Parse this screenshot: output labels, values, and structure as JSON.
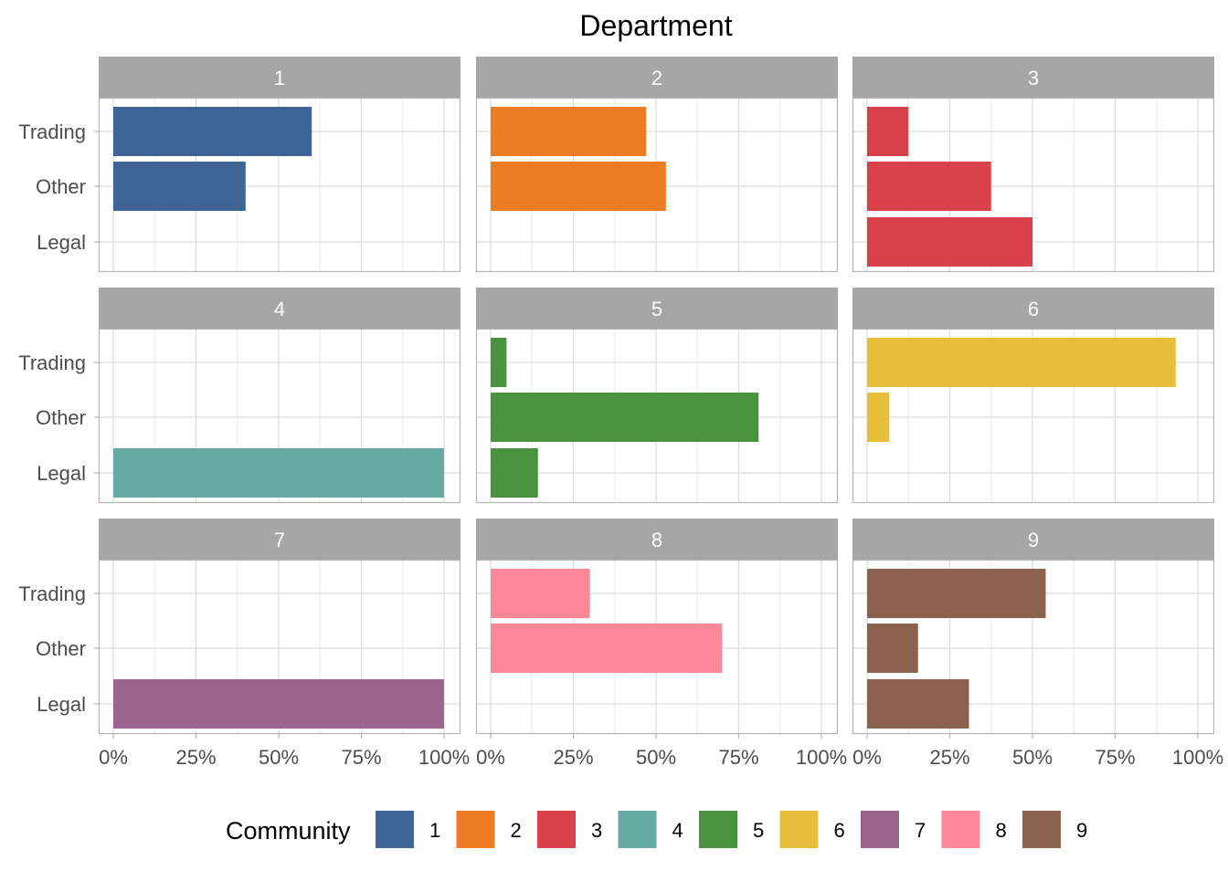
{
  "chart_data": {
    "type": "bar",
    "orientation": "horizontal",
    "title": "Department",
    "categories": [
      "Trading",
      "Other",
      "Legal"
    ],
    "x_ticks": [
      "0%",
      "25%",
      "50%",
      "75%",
      "100%"
    ],
    "xlim": [
      0,
      1
    ],
    "grid": true,
    "legend": {
      "title": "Community",
      "position": "bottom",
      "entries": [
        "1",
        "2",
        "3",
        "4",
        "5",
        "6",
        "7",
        "8",
        "9"
      ]
    },
    "colors": [
      "#3f6496",
      "#ec7b24",
      "#d9414a",
      "#65aba3",
      "#49933e",
      "#e7be3b",
      "#9c6590",
      "#fd8898",
      "#8a624e"
    ],
    "facets": [
      {
        "label": "1",
        "values": [
          0.6,
          0.4,
          0.0
        ]
      },
      {
        "label": "2",
        "values": [
          0.47,
          0.53,
          0.0
        ]
      },
      {
        "label": "3",
        "values": [
          0.125,
          0.375,
          0.5
        ]
      },
      {
        "label": "4",
        "values": [
          0.0,
          0.0,
          1.0
        ]
      },
      {
        "label": "5",
        "values": [
          0.048,
          0.81,
          0.143
        ]
      },
      {
        "label": "6",
        "values": [
          0.933,
          0.067,
          0.0
        ]
      },
      {
        "label": "7",
        "values": [
          0.0,
          0.0,
          1.0
        ]
      },
      {
        "label": "8",
        "values": [
          0.3,
          0.7,
          0.0
        ]
      },
      {
        "label": "9",
        "values": [
          0.54,
          0.154,
          0.308
        ]
      }
    ]
  }
}
